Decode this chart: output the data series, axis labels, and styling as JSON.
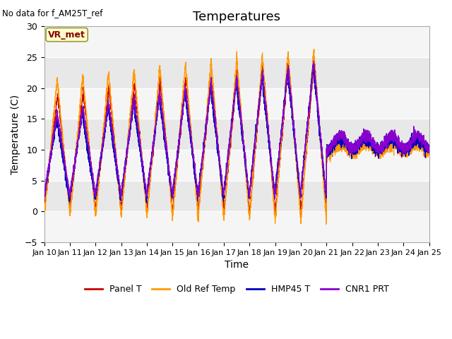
{
  "title": "Temperatures",
  "xlabel": "Time",
  "ylabel": "Temperature (C)",
  "note": "No data for f_AM25T_ref",
  "annotation": "VR_met",
  "ylim": [
    -5,
    30
  ],
  "yticks": [
    -5,
    0,
    5,
    10,
    15,
    20,
    25,
    30
  ],
  "n_days": 15,
  "colors": {
    "Panel T": "#cc0000",
    "Old Ref Temp": "#ff9900",
    "HMP45 T": "#0000bb",
    "CNR1 PRT": "#8800cc"
  },
  "figsize": [
    6.4,
    4.8
  ],
  "dpi": 100
}
